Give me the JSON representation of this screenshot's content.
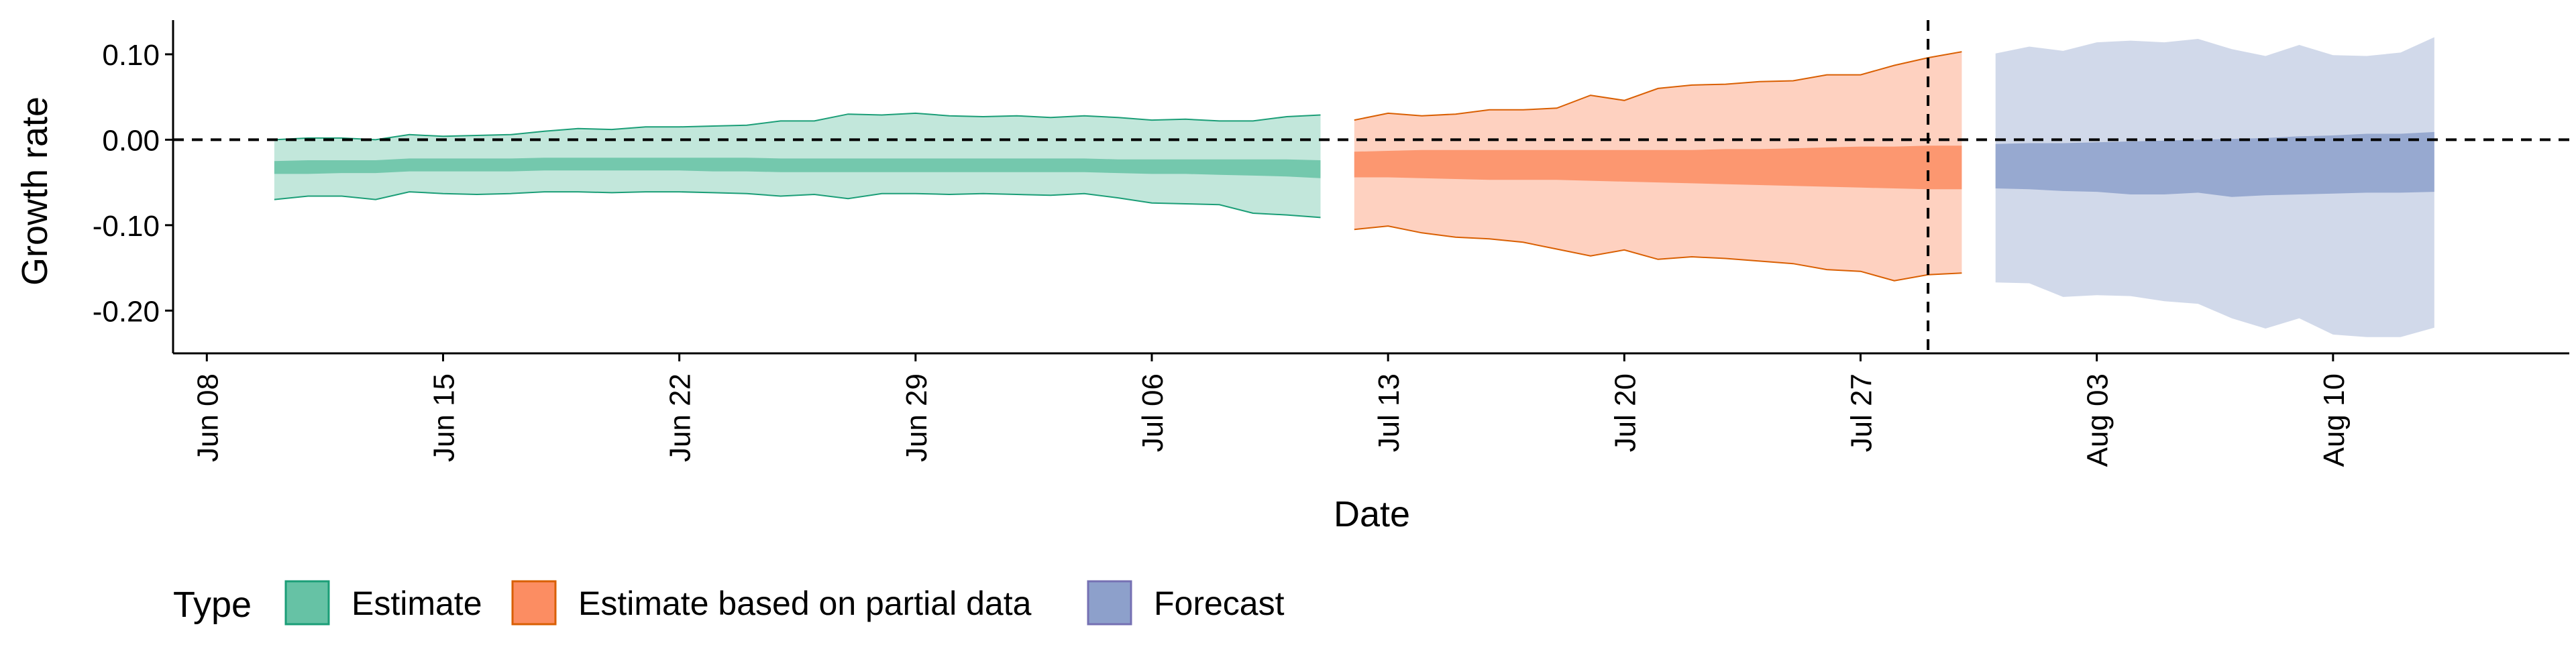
{
  "chart_data": {
    "type": "area",
    "xlabel": "Date",
    "ylabel": "Growth rate",
    "x_ticks": [
      "2020-06-08",
      "2020-06-15",
      "2020-06-22",
      "2020-06-29",
      "2020-07-06",
      "2020-07-13",
      "2020-07-20",
      "2020-07-27",
      "2020-08-03",
      "2020-08-10"
    ],
    "x_tick_labels": [
      "Jun 08",
      "Jun 15",
      "Jun 22",
      "Jun 29",
      "Jul 06",
      "Jul 13",
      "Jul 20",
      "Jul 27",
      "Aug 03",
      "Aug 10"
    ],
    "y_ticks": [
      0.1,
      0.0,
      -0.1,
      -0.2
    ],
    "y_tick_labels": [
      "0.10",
      "0.00",
      "-0.10",
      "-0.20"
    ],
    "xlim": [
      "2020-06-07",
      "2020-08-17"
    ],
    "ylim": [
      -0.25,
      0.14
    ],
    "hline": 0.0,
    "vline": "2020-07-29",
    "grid": false,
    "legend_title": "Type",
    "legend_position": "bottom",
    "series": [
      {
        "name": "Estimate",
        "color": "#1b9e77",
        "fill": "#66c2a5",
        "points": [
          {
            "date": "2020-06-10",
            "lower90": -0.07,
            "lower50": -0.04,
            "upper50": -0.025,
            "upper90": 0.0
          },
          {
            "date": "2020-06-11",
            "lower90": -0.066,
            "lower50": -0.04,
            "upper50": -0.024,
            "upper90": 0.002
          },
          {
            "date": "2020-06-12",
            "lower90": -0.066,
            "lower50": -0.039,
            "upper50": -0.024,
            "upper90": 0.002
          },
          {
            "date": "2020-06-13",
            "lower90": -0.07,
            "lower50": -0.039,
            "upper50": -0.024,
            "upper90": 0.0
          },
          {
            "date": "2020-06-14",
            "lower90": -0.061,
            "lower50": -0.037,
            "upper50": -0.022,
            "upper90": 0.006
          },
          {
            "date": "2020-06-15",
            "lower90": -0.063,
            "lower50": -0.037,
            "upper50": -0.022,
            "upper90": 0.004
          },
          {
            "date": "2020-06-16",
            "lower90": -0.064,
            "lower50": -0.037,
            "upper50": -0.022,
            "upper90": 0.005
          },
          {
            "date": "2020-06-17",
            "lower90": -0.063,
            "lower50": -0.037,
            "upper50": -0.022,
            "upper90": 0.006
          },
          {
            "date": "2020-06-18",
            "lower90": -0.061,
            "lower50": -0.036,
            "upper50": -0.021,
            "upper90": 0.01
          },
          {
            "date": "2020-06-19",
            "lower90": -0.061,
            "lower50": -0.036,
            "upper50": -0.021,
            "upper90": 0.013
          },
          {
            "date": "2020-06-20",
            "lower90": -0.062,
            "lower50": -0.036,
            "upper50": -0.021,
            "upper90": 0.012
          },
          {
            "date": "2020-06-21",
            "lower90": -0.061,
            "lower50": -0.036,
            "upper50": -0.021,
            "upper90": 0.015
          },
          {
            "date": "2020-06-22",
            "lower90": -0.061,
            "lower50": -0.036,
            "upper50": -0.021,
            "upper90": 0.015
          },
          {
            "date": "2020-06-23",
            "lower90": -0.062,
            "lower50": -0.037,
            "upper50": -0.021,
            "upper90": 0.016
          },
          {
            "date": "2020-06-24",
            "lower90": -0.063,
            "lower50": -0.037,
            "upper50": -0.021,
            "upper90": 0.017
          },
          {
            "date": "2020-06-25",
            "lower90": -0.066,
            "lower50": -0.038,
            "upper50": -0.022,
            "upper90": 0.022
          },
          {
            "date": "2020-06-26",
            "lower90": -0.064,
            "lower50": -0.038,
            "upper50": -0.022,
            "upper90": 0.022
          },
          {
            "date": "2020-06-27",
            "lower90": -0.069,
            "lower50": -0.038,
            "upper50": -0.022,
            "upper90": 0.03
          },
          {
            "date": "2020-06-28",
            "lower90": -0.063,
            "lower50": -0.038,
            "upper50": -0.022,
            "upper90": 0.029
          },
          {
            "date": "2020-06-29",
            "lower90": -0.063,
            "lower50": -0.038,
            "upper50": -0.022,
            "upper90": 0.031
          },
          {
            "date": "2020-06-30",
            "lower90": -0.064,
            "lower50": -0.038,
            "upper50": -0.022,
            "upper90": 0.028
          },
          {
            "date": "2020-07-01",
            "lower90": -0.063,
            "lower50": -0.038,
            "upper50": -0.022,
            "upper90": 0.027
          },
          {
            "date": "2020-07-02",
            "lower90": -0.064,
            "lower50": -0.038,
            "upper50": -0.022,
            "upper90": 0.028
          },
          {
            "date": "2020-07-03",
            "lower90": -0.065,
            "lower50": -0.038,
            "upper50": -0.022,
            "upper90": 0.026
          },
          {
            "date": "2020-07-04",
            "lower90": -0.063,
            "lower50": -0.038,
            "upper50": -0.022,
            "upper90": 0.028
          },
          {
            "date": "2020-07-05",
            "lower90": -0.068,
            "lower50": -0.039,
            "upper50": -0.023,
            "upper90": 0.026
          },
          {
            "date": "2020-07-06",
            "lower90": -0.074,
            "lower50": -0.04,
            "upper50": -0.023,
            "upper90": 0.023
          },
          {
            "date": "2020-07-07",
            "lower90": -0.075,
            "lower50": -0.04,
            "upper50": -0.023,
            "upper90": 0.024
          },
          {
            "date": "2020-07-08",
            "lower90": -0.076,
            "lower50": -0.041,
            "upper50": -0.023,
            "upper90": 0.022
          },
          {
            "date": "2020-07-09",
            "lower90": -0.086,
            "lower50": -0.042,
            "upper50": -0.023,
            "upper90": 0.022
          },
          {
            "date": "2020-07-10",
            "lower90": -0.088,
            "lower50": -0.043,
            "upper50": -0.023,
            "upper90": 0.027
          },
          {
            "date": "2020-07-11",
            "lower90": -0.091,
            "lower50": -0.045,
            "upper50": -0.024,
            "upper90": 0.029
          }
        ]
      },
      {
        "name": "Estimate based on partial data",
        "color": "#d95f02",
        "fill": "#fc8d62",
        "points": [
          {
            "date": "2020-07-12",
            "lower90": -0.105,
            "lower50": -0.044,
            "upper50": -0.014,
            "upper90": 0.023
          },
          {
            "date": "2020-07-13",
            "lower90": -0.101,
            "lower50": -0.044,
            "upper50": -0.013,
            "upper90": 0.031
          },
          {
            "date": "2020-07-14",
            "lower90": -0.109,
            "lower50": -0.045,
            "upper50": -0.012,
            "upper90": 0.028
          },
          {
            "date": "2020-07-15",
            "lower90": -0.114,
            "lower50": -0.046,
            "upper50": -0.012,
            "upper90": 0.03
          },
          {
            "date": "2020-07-16",
            "lower90": -0.116,
            "lower50": -0.047,
            "upper50": -0.012,
            "upper90": 0.035
          },
          {
            "date": "2020-07-17",
            "lower90": -0.12,
            "lower50": -0.047,
            "upper50": -0.012,
            "upper90": 0.035
          },
          {
            "date": "2020-07-18",
            "lower90": -0.128,
            "lower50": -0.047,
            "upper50": -0.012,
            "upper90": 0.037
          },
          {
            "date": "2020-07-19",
            "lower90": -0.136,
            "lower50": -0.048,
            "upper50": -0.012,
            "upper90": 0.052
          },
          {
            "date": "2020-07-20",
            "lower90": -0.129,
            "lower50": -0.049,
            "upper50": -0.012,
            "upper90": 0.046
          },
          {
            "date": "2020-07-21",
            "lower90": -0.14,
            "lower50": -0.05,
            "upper50": -0.012,
            "upper90": 0.06
          },
          {
            "date": "2020-07-22",
            "lower90": -0.137,
            "lower50": -0.051,
            "upper50": -0.012,
            "upper90": 0.064
          },
          {
            "date": "2020-07-23",
            "lower90": -0.139,
            "lower50": -0.052,
            "upper50": -0.011,
            "upper90": 0.065
          },
          {
            "date": "2020-07-24",
            "lower90": -0.142,
            "lower50": -0.053,
            "upper50": -0.011,
            "upper90": 0.068
          },
          {
            "date": "2020-07-25",
            "lower90": -0.145,
            "lower50": -0.054,
            "upper50": -0.01,
            "upper90": 0.069
          },
          {
            "date": "2020-07-26",
            "lower90": -0.152,
            "lower50": -0.055,
            "upper50": -0.009,
            "upper90": 0.076
          },
          {
            "date": "2020-07-27",
            "lower90": -0.154,
            "lower50": -0.056,
            "upper50": -0.008,
            "upper90": 0.076
          },
          {
            "date": "2020-07-28",
            "lower90": -0.165,
            "lower50": -0.057,
            "upper50": -0.008,
            "upper90": 0.087
          },
          {
            "date": "2020-07-29",
            "lower90": -0.158,
            "lower50": -0.058,
            "upper50": -0.007,
            "upper90": 0.096
          },
          {
            "date": "2020-07-30",
            "lower90": -0.156,
            "lower50": -0.058,
            "upper50": -0.007,
            "upper90": 0.103
          }
        ]
      },
      {
        "name": "Forecast",
        "color": "#7570b3",
        "fill": "#8da0cb",
        "points": [
          {
            "date": "2020-07-31",
            "lower90": -0.167,
            "lower50": -0.057,
            "upper50": -0.005,
            "upper90": 0.101
          },
          {
            "date": "2020-08-01",
            "lower90": -0.168,
            "lower50": -0.058,
            "upper50": -0.004,
            "upper90": 0.109
          },
          {
            "date": "2020-08-02",
            "lower90": -0.184,
            "lower50": -0.06,
            "upper50": -0.004,
            "upper90": 0.104
          },
          {
            "date": "2020-08-03",
            "lower90": -0.182,
            "lower50": -0.061,
            "upper50": -0.003,
            "upper90": 0.114
          },
          {
            "date": "2020-08-04",
            "lower90": -0.183,
            "lower50": -0.064,
            "upper50": -0.002,
            "upper90": 0.116
          },
          {
            "date": "2020-08-05",
            "lower90": -0.189,
            "lower50": -0.064,
            "upper50": -0.001,
            "upper90": 0.114
          },
          {
            "date": "2020-08-06",
            "lower90": -0.192,
            "lower50": -0.062,
            "upper50": 0.0,
            "upper90": 0.118
          },
          {
            "date": "2020-08-07",
            "lower90": -0.209,
            "lower50": -0.067,
            "upper50": 0.001,
            "upper90": 0.106
          },
          {
            "date": "2020-08-08",
            "lower90": -0.221,
            "lower50": -0.065,
            "upper50": 0.002,
            "upper90": 0.098
          },
          {
            "date": "2020-08-09",
            "lower90": -0.209,
            "lower50": -0.064,
            "upper50": 0.004,
            "upper90": 0.111
          },
          {
            "date": "2020-08-10",
            "lower90": -0.228,
            "lower50": -0.063,
            "upper50": 0.005,
            "upper90": 0.099
          },
          {
            "date": "2020-08-11",
            "lower90": -0.231,
            "lower50": -0.062,
            "upper50": 0.007,
            "upper90": 0.098
          },
          {
            "date": "2020-08-12",
            "lower90": -0.231,
            "lower50": -0.062,
            "upper50": 0.007,
            "upper90": 0.102
          },
          {
            "date": "2020-08-13",
            "lower90": -0.22,
            "lower50": -0.061,
            "upper50": 0.009,
            "upper90": 0.12
          }
        ]
      }
    ]
  }
}
